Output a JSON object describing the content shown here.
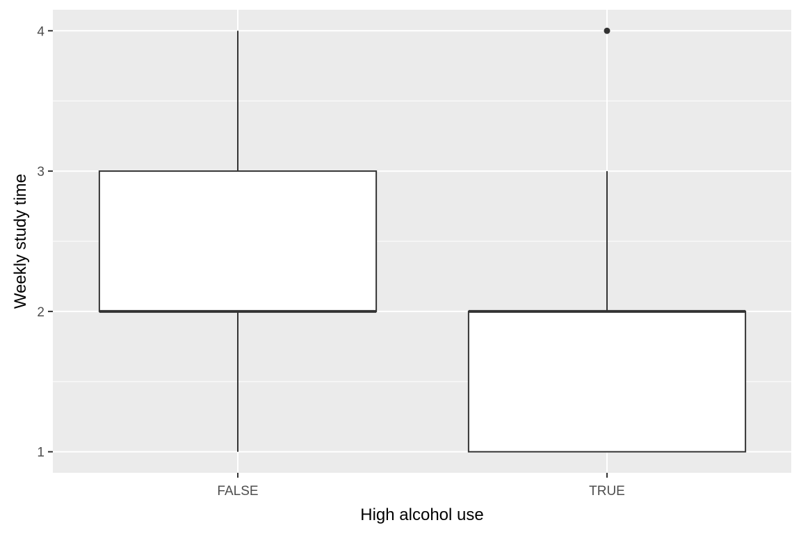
{
  "chart_data": {
    "type": "boxplot",
    "xlabel": "High alcohol use",
    "ylabel": "Weekly study time",
    "categories": [
      "FALSE",
      "TRUE"
    ],
    "boxes": [
      {
        "category": "FALSE",
        "whisker_low": 1,
        "q1": 2,
        "median": 2,
        "q3": 3,
        "whisker_high": 4,
        "outliers": []
      },
      {
        "category": "TRUE",
        "whisker_low": 1,
        "q1": 1,
        "median": 2,
        "q3": 2,
        "whisker_high": 3,
        "outliers": [
          4
        ]
      }
    ],
    "ylim": [
      0.85,
      4.15
    ],
    "yticks": [
      1,
      2,
      3,
      4
    ],
    "yticks_minor": [
      1.5,
      2.5,
      3.5
    ],
    "grid": true,
    "legend": "none",
    "colors": {
      "panel_background": "#ebebeb",
      "grid": "#ffffff",
      "box_fill": "#ffffff",
      "box_stroke": "#333333",
      "tick_text": "#4d4d4d",
      "title_text": "#000000"
    }
  }
}
